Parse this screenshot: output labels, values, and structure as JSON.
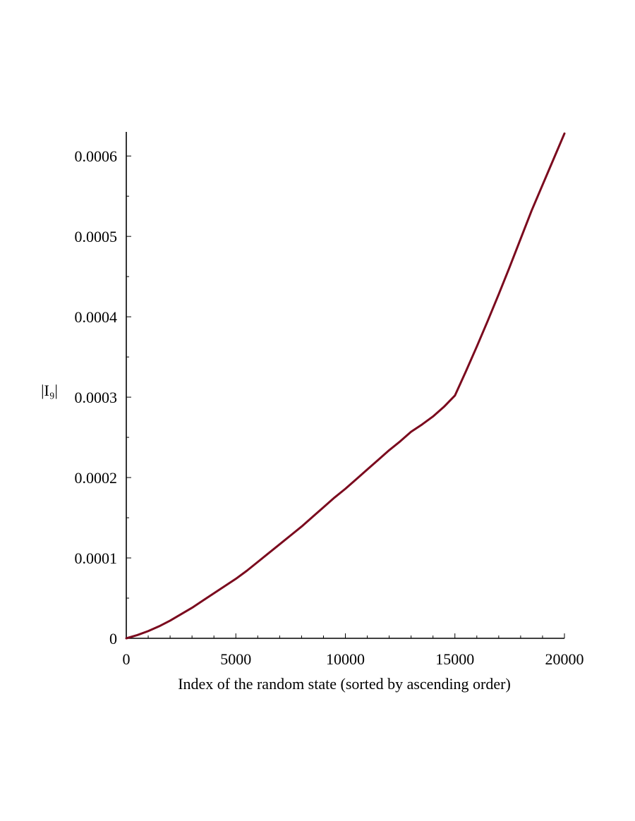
{
  "chart_data": {
    "type": "line",
    "title": "",
    "xlabel": "Index of the random state (sorted by ascending order)",
    "ylabel": "|I₉|",
    "xlim": [
      0,
      20000
    ],
    "ylim": [
      0,
      0.00063
    ],
    "x_ticks": [
      0,
      5000,
      10000,
      15000,
      20000
    ],
    "x_tick_labels": [
      "0",
      "5000",
      "10000",
      "15000",
      "20000"
    ],
    "y_ticks": [
      0,
      0.0001,
      0.0002,
      0.0003,
      0.0004,
      0.0005,
      0.0006
    ],
    "y_tick_labels": [
      "0",
      "0.0001",
      "0.0002",
      "0.0003",
      "0.0004",
      "0.0005",
      "0.0006"
    ],
    "grid": false,
    "legend": "none",
    "colors": {
      "series": "#7b0a1e",
      "axes": "#000000"
    },
    "series": [
      {
        "x": [
          0,
          500,
          1000,
          1500,
          2000,
          2500,
          3000,
          3500,
          4000,
          4500,
          5000,
          5500,
          6000,
          6500,
          7000,
          7500,
          8000,
          8500,
          9000,
          9500,
          10000,
          10500,
          11000,
          11500,
          12000,
          12500,
          13000,
          13500,
          14000,
          14500,
          15000,
          15500,
          16000,
          16500,
          17000,
          17500,
          18000,
          18500,
          19000,
          19500,
          20000
        ],
        "y": [
          0,
          4e-06,
          9e-06,
          1.5e-05,
          2.2e-05,
          3e-05,
          3.8e-05,
          4.7e-05,
          5.6e-05,
          6.5e-05,
          7.4e-05,
          8.4e-05,
          9.5e-05,
          0.000106,
          0.000117,
          0.000128,
          0.000139,
          0.000151,
          0.000163,
          0.000175,
          0.000186,
          0.000198,
          0.00021,
          0.000222,
          0.000234,
          0.000245,
          0.000257,
          0.000266,
          0.000276,
          0.000288,
          0.000302,
          0.000332,
          0.000363,
          0.000395,
          0.000428,
          0.000462,
          0.000497,
          0.000532,
          0.000564,
          0.000596,
          0.000628
        ]
      }
    ]
  }
}
